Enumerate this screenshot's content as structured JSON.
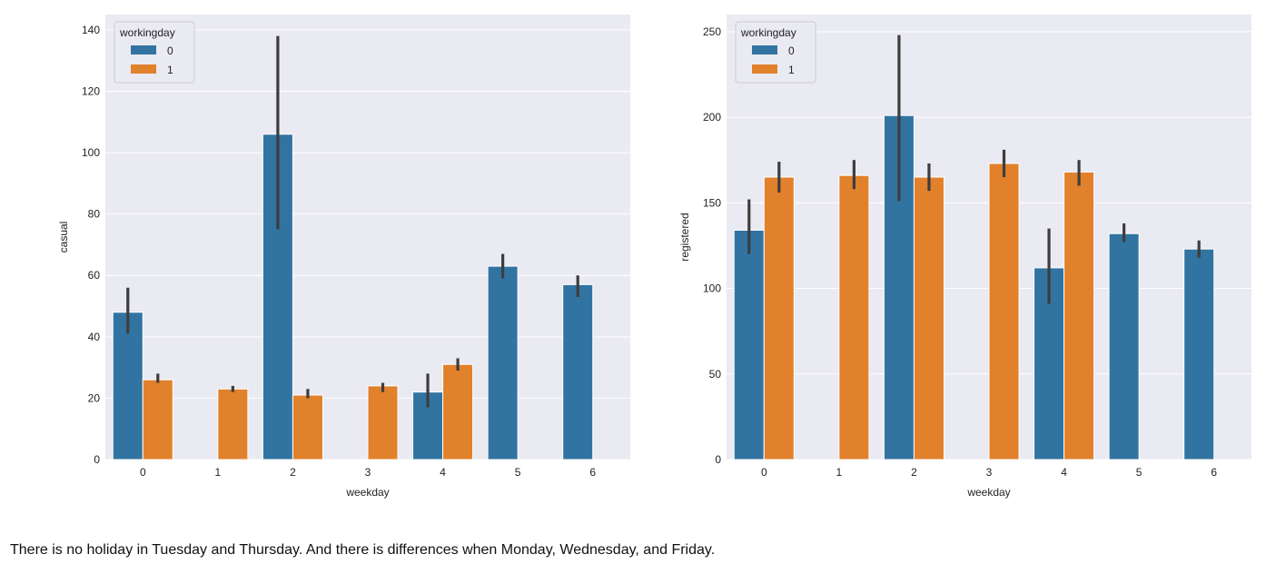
{
  "chart_data": [
    {
      "type": "bar",
      "xlabel": "weekday",
      "ylabel": "casual",
      "categories": [
        "0",
        "1",
        "2",
        "3",
        "4",
        "5",
        "6"
      ],
      "ylim": [
        0,
        145
      ],
      "yticks": [
        0,
        20,
        40,
        60,
        80,
        100,
        120,
        140
      ],
      "legend": {
        "title": "workingday",
        "placement": "top-left"
      },
      "series": [
        {
          "name": "0",
          "color": "#3274a1",
          "values": [
            48,
            null,
            106,
            null,
            22,
            63,
            57
          ],
          "err_low": [
            41,
            null,
            75,
            null,
            17,
            59,
            53
          ],
          "err_high": [
            56,
            null,
            138,
            null,
            28,
            67,
            60
          ]
        },
        {
          "name": "1",
          "color": "#e1812c",
          "values": [
            26,
            23,
            21,
            24,
            31,
            null,
            null
          ],
          "err_low": [
            25,
            22,
            20,
            22,
            29,
            null,
            null
          ],
          "err_high": [
            28,
            24,
            23,
            25,
            33,
            null,
            null
          ]
        }
      ],
      "grid": true
    },
    {
      "type": "bar",
      "xlabel": "weekday",
      "ylabel": "registered",
      "categories": [
        "0",
        "1",
        "2",
        "3",
        "4",
        "5",
        "6"
      ],
      "ylim": [
        0,
        260
      ],
      "yticks": [
        0,
        50,
        100,
        150,
        200,
        250
      ],
      "legend": {
        "title": "workingday",
        "placement": "top-left"
      },
      "series": [
        {
          "name": "0",
          "color": "#3274a1",
          "values": [
            134,
            null,
            201,
            null,
            112,
            132,
            123
          ],
          "err_low": [
            120,
            null,
            151,
            null,
            91,
            127,
            118
          ],
          "err_high": [
            152,
            null,
            248,
            null,
            135,
            138,
            128
          ]
        },
        {
          "name": "1",
          "color": "#e1812c",
          "values": [
            165,
            166,
            165,
            173,
            168,
            null,
            null
          ],
          "err_low": [
            156,
            158,
            157,
            165,
            160,
            null,
            null
          ],
          "err_high": [
            174,
            175,
            173,
            181,
            175,
            null,
            null
          ]
        }
      ],
      "grid": true
    }
  ],
  "caption": "There is no holiday in Tuesday and Thursday. And there is differences when Monday, Wednesday, and Friday."
}
